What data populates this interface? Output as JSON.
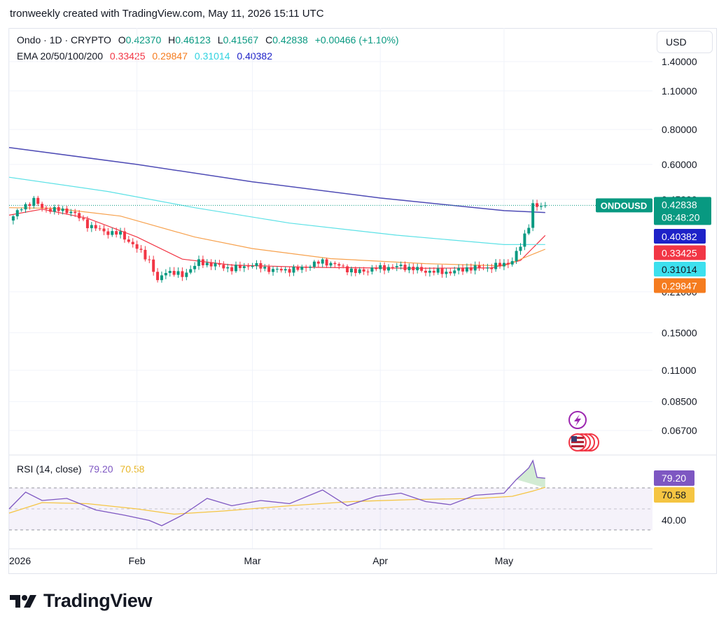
{
  "header": {
    "caption": "tronweekly created with TradingView.com, May 11, 2026 15:11 UTC"
  },
  "legend": {
    "symbol": "Ondo · 1D · CRYPTO",
    "open_label": "O",
    "open": "0.42370",
    "high_label": "H",
    "high": "0.46123",
    "low_label": "L",
    "low": "0.41567",
    "close_label": "C",
    "close": "0.42838",
    "change": "+0.00466 (+1.10%)",
    "ema_label": "EMA 20/50/100/200",
    "ema20": "0.33425",
    "ema50": "0.29847",
    "ema100": "0.31014",
    "ema200": "0.40382"
  },
  "currency_button": "USD",
  "rsi_legend": {
    "label": "RSI (14, close)",
    "rsi": "79.20",
    "ma": "70.58"
  },
  "brand": {
    "name": "TradingView"
  },
  "colors": {
    "up": "#089981",
    "down": "#f23645",
    "ema20": "#f23645",
    "ema50": "#f7a14d",
    "ema100": "#5ce1e6",
    "ema200": "#4e4bb5",
    "rsi": "#7e57c2",
    "rsi_ma": "#f5c542"
  },
  "chart_data": [
    {
      "type": "candlestick",
      "symbol_tag": "ONDOUSD",
      "price_scale": "log",
      "y_ticks": [
        "1.40000",
        "1.10000",
        "0.80000",
        "0.60000",
        "0.45000",
        "0.21000",
        "0.15000",
        "0.11000",
        "0.08500",
        "0.06700"
      ],
      "x_ticks": [
        "2026",
        "Feb",
        "Mar",
        "Apr",
        "May"
      ],
      "x_range": [
        "2026-01-01",
        "2026-06-06"
      ],
      "last_price": {
        "value": "0.42838",
        "countdown": "08:48:20"
      },
      "ema_badges": [
        {
          "name": "EMA 200",
          "value": "0.40382",
          "color": "#1e22c8"
        },
        {
          "name": "EMA 20",
          "value": "0.33425",
          "color": "#f23645"
        },
        {
          "name": "EMA 100",
          "value": "0.31014",
          "color": "#3de0ee"
        },
        {
          "name": "EMA 50",
          "value": "0.29847",
          "color": "#f57c1f"
        }
      ],
      "close_anchors": [
        [
          "2026-01-01",
          0.378
        ],
        [
          "2026-01-04",
          0.418
        ],
        [
          "2026-01-07",
          0.448
        ],
        [
          "2026-01-09",
          0.418
        ],
        [
          "2026-01-13",
          0.412
        ],
        [
          "2026-01-16",
          0.408
        ],
        [
          "2026-01-20",
          0.365
        ],
        [
          "2026-01-24",
          0.345
        ],
        [
          "2026-01-28",
          0.338
        ],
        [
          "2026-02-01",
          0.3
        ],
        [
          "2026-02-04",
          0.272
        ],
        [
          "2026-02-06",
          0.228
        ],
        [
          "2026-02-08",
          0.25
        ],
        [
          "2026-02-12",
          0.24
        ],
        [
          "2026-02-16",
          0.268
        ],
        [
          "2026-02-20",
          0.262
        ],
        [
          "2026-02-24",
          0.254
        ],
        [
          "2026-03-01",
          0.262
        ],
        [
          "2026-03-06",
          0.251
        ],
        [
          "2026-03-12",
          0.253
        ],
        [
          "2026-03-18",
          0.27
        ],
        [
          "2026-03-22",
          0.26
        ],
        [
          "2026-03-26",
          0.247
        ],
        [
          "2026-03-31",
          0.255
        ],
        [
          "2026-04-06",
          0.259
        ],
        [
          "2026-04-12",
          0.249
        ],
        [
          "2026-04-18",
          0.247
        ],
        [
          "2026-04-22",
          0.255
        ],
        [
          "2026-04-28",
          0.257
        ],
        [
          "2026-05-03",
          0.27
        ],
        [
          "2026-05-05",
          0.308
        ],
        [
          "2026-05-07",
          0.365
        ],
        [
          "2026-05-08",
          0.428
        ],
        [
          "2026-05-09",
          0.422
        ],
        [
          "2026-05-11",
          0.42838
        ]
      ],
      "ema_series": [
        {
          "name": "EMA 20",
          "color": "#f23645",
          "points": [
            [
              "2026-01-01",
              0.395
            ],
            [
              "2026-01-09",
              0.415
            ],
            [
              "2026-01-20",
              0.385
            ],
            [
              "2026-02-01",
              0.33
            ],
            [
              "2026-02-12",
              0.275
            ],
            [
              "2026-02-24",
              0.262
            ],
            [
              "2026-03-15",
              0.257
            ],
            [
              "2026-04-10",
              0.255
            ],
            [
              "2026-04-28",
              0.256
            ],
            [
              "2026-05-05",
              0.272
            ],
            [
              "2026-05-11",
              0.33425
            ]
          ]
        },
        {
          "name": "EMA 50",
          "color": "#f7a14d",
          "points": [
            [
              "2026-01-01",
              0.42
            ],
            [
              "2026-01-12",
              0.418
            ],
            [
              "2026-01-28",
              0.392
            ],
            [
              "2026-02-15",
              0.33
            ],
            [
              "2026-03-01",
              0.3
            ],
            [
              "2026-03-20",
              0.276
            ],
            [
              "2026-04-12",
              0.265
            ],
            [
              "2026-05-01",
              0.26
            ],
            [
              "2026-05-11",
              0.29847
            ]
          ]
        },
        {
          "name": "EMA 100",
          "color": "#5ce1e6",
          "points": [
            [
              "2026-01-01",
              0.54
            ],
            [
              "2026-01-25",
              0.48
            ],
            [
              "2026-02-15",
              0.42
            ],
            [
              "2026-03-10",
              0.37
            ],
            [
              "2026-04-05",
              0.335
            ],
            [
              "2026-05-01",
              0.31
            ],
            [
              "2026-05-11",
              0.31014
            ]
          ]
        },
        {
          "name": "EMA 200",
          "color": "#4e4bb5",
          "points": [
            [
              "2026-01-01",
              0.69
            ],
            [
              "2026-02-01",
              0.6
            ],
            [
              "2026-03-01",
              0.52
            ],
            [
              "2026-04-01",
              0.455
            ],
            [
              "2026-05-01",
              0.41
            ],
            [
              "2026-05-11",
              0.40382
            ]
          ]
        }
      ]
    },
    {
      "type": "line",
      "name": "RSI (14, close)",
      "y_tick": "40.00",
      "band": [
        30,
        70
      ],
      "value_badges": [
        {
          "value": "79.20",
          "color": "#7e57c2"
        },
        {
          "value": "70.58",
          "color": "#f5c542"
        }
      ],
      "rsi_points": [
        [
          "2026-01-01",
          50
        ],
        [
          "2026-01-05",
          66
        ],
        [
          "2026-01-09",
          58
        ],
        [
          "2026-01-15",
          60
        ],
        [
          "2026-01-22",
          49
        ],
        [
          "2026-01-29",
          44
        ],
        [
          "2026-02-04",
          39
        ],
        [
          "2026-02-07",
          34
        ],
        [
          "2026-02-12",
          44
        ],
        [
          "2026-02-18",
          60
        ],
        [
          "2026-02-24",
          53
        ],
        [
          "2026-03-03",
          58
        ],
        [
          "2026-03-10",
          55
        ],
        [
          "2026-03-18",
          68
        ],
        [
          "2026-03-24",
          53
        ],
        [
          "2026-03-31",
          62
        ],
        [
          "2026-04-06",
          65
        ],
        [
          "2026-04-12",
          57
        ],
        [
          "2026-04-18",
          54
        ],
        [
          "2026-04-24",
          63
        ],
        [
          "2026-05-01",
          65
        ],
        [
          "2026-05-04",
          78
        ],
        [
          "2026-05-07",
          89
        ],
        [
          "2026-05-08",
          96
        ],
        [
          "2026-05-09",
          80
        ],
        [
          "2026-05-11",
          79.2
        ]
      ],
      "ma_points": [
        [
          "2026-01-01",
          46
        ],
        [
          "2026-01-09",
          56
        ],
        [
          "2026-01-20",
          55
        ],
        [
          "2026-02-01",
          50
        ],
        [
          "2026-02-10",
          45
        ],
        [
          "2026-02-22",
          48
        ],
        [
          "2026-03-10",
          53
        ],
        [
          "2026-03-25",
          57
        ],
        [
          "2026-04-10",
          59
        ],
        [
          "2026-04-25",
          60
        ],
        [
          "2026-05-03",
          62
        ],
        [
          "2026-05-08",
          67
        ],
        [
          "2026-05-11",
          70.58
        ]
      ]
    }
  ]
}
